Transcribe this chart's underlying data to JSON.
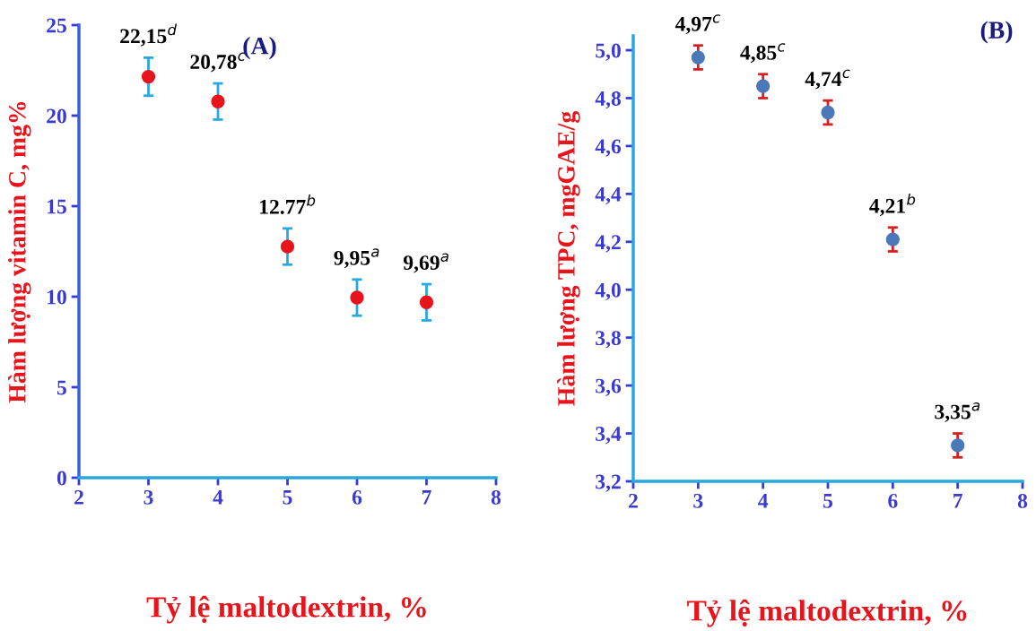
{
  "chart_data": [
    {
      "type": "scatter",
      "xlabel": "Tỷ lệ maltodextrin, %",
      "ylabel": "Hàm lượng vitamin C, mg%",
      "annotations": [
        "(A)"
      ],
      "x": [
        3,
        4,
        5,
        6,
        7
      ],
      "series": [
        {
          "color": "#e8141c",
          "values": [
            22.15,
            20.78,
            12.77,
            9.95,
            9.69
          ],
          "errors": [
            1.05,
            1.0,
            1.0,
            1.0,
            1.0
          ],
          "value_labels": [
            "22,15$^{d}$",
            "20,78$^{c}$",
            "12.77$^{b}$",
            "9,95$^{a}$",
            "9,69$^{a}$"
          ]
        }
      ],
      "xlim": [
        2,
        8
      ],
      "xticks": [
        2,
        3,
        4,
        5,
        6,
        7,
        8
      ],
      "ylim": [
        0,
        25
      ],
      "yticks": [
        0,
        5,
        10,
        15,
        20,
        25
      ],
      "marker": "circle",
      "grid": false,
      "legend": false
    },
    {
      "type": "scatter",
      "xlabel": "Tỷ lệ maltodextrin, %",
      "ylabel": "Hàm lượng TPC, mgGAE/g",
      "annotations": [
        "(B)"
      ],
      "x": [
        3,
        4,
        5,
        6,
        7
      ],
      "series": [
        {
          "color": "#4a78b8",
          "values": [
            4.97,
            4.85,
            4.74,
            4.21,
            3.35
          ],
          "errors": [
            0.05,
            0.05,
            0.05,
            0.05,
            0.05
          ],
          "value_labels": [
            "4,97$^{c}$",
            "4,85$^{c}$",
            "4,74$^{c}$",
            "4,21$^{b}$",
            "3,35$^{a}$"
          ]
        }
      ],
      "xlim": [
        2,
        8
      ],
      "xticks": [
        2,
        3,
        4,
        5,
        6,
        7,
        8
      ],
      "ylim": [
        3.2,
        5.06
      ],
      "yticks": [
        {
          "value": 3.2,
          "label": "3,2"
        },
        {
          "value": 3.4,
          "label": "3,4"
        },
        {
          "value": 3.6,
          "label": "3,6"
        },
        {
          "value": 3.8,
          "label": "3,8"
        },
        {
          "value": 4.0,
          "label": "4,0"
        },
        {
          "value": 4.2,
          "label": "4,2"
        },
        {
          "value": 4.4,
          "label": "4,4"
        },
        {
          "value": 4.6,
          "label": "4,6"
        },
        {
          "value": 4.8,
          "label": "4,8"
        },
        {
          "value": 5.0,
          "label": "5,0"
        }
      ],
      "marker": "circle",
      "grid": false,
      "legend": false
    }
  ]
}
